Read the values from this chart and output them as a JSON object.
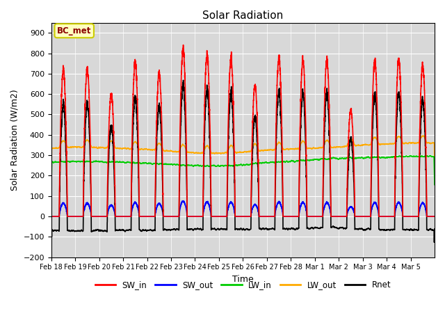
{
  "title": "Solar Radiation",
  "xlabel": "Time",
  "ylabel": "Solar Radiation (W/m2)",
  "ylim": [
    -200,
    950
  ],
  "yticks": [
    -200,
    -100,
    0,
    100,
    200,
    300,
    400,
    500,
    600,
    700,
    800,
    900
  ],
  "annotation": "BC_met",
  "annotation_color": "#8B0000",
  "annotation_bg": "#ffffc0",
  "annotation_edge": "#cccc00",
  "lines": {
    "SW_in": {
      "color": "#ff0000",
      "lw": 1.2
    },
    "SW_out": {
      "color": "#0000ff",
      "lw": 1.2
    },
    "LW_in": {
      "color": "#00cc00",
      "lw": 1.2
    },
    "LW_out": {
      "color": "#ffaa00",
      "lw": 1.2
    },
    "Rnet": {
      "color": "#000000",
      "lw": 1.2
    }
  },
  "bg_color": "#d8d8d8",
  "n_days": 16,
  "pts_per_day": 288,
  "day_labels": [
    "Feb 18",
    "Feb 19",
    "Feb 20",
    "Feb 21",
    "Feb 22",
    "Feb 23",
    "Feb 24",
    "Feb 25",
    "Feb 26",
    "Feb 27",
    "Feb 28",
    "Mar 1",
    "Mar 2",
    "Mar 3",
    "Mar 4",
    "Mar 5"
  ],
  "sw_in_peaks": [
    715,
    720,
    600,
    755,
    700,
    820,
    790,
    770,
    640,
    780,
    765,
    760,
    520,
    760,
    770,
    740
  ],
  "sw_out_peaks": [
    65,
    65,
    55,
    68,
    63,
    74,
    71,
    69,
    58,
    70,
    69,
    68,
    47,
    68,
    69,
    66
  ],
  "lw_in_base": [
    265,
    270,
    268,
    265,
    260,
    255,
    248,
    248,
    252,
    265,
    270,
    278,
    285,
    288,
    290,
    295
  ],
  "lw_out_base": [
    335,
    340,
    338,
    333,
    328,
    320,
    312,
    310,
    315,
    325,
    330,
    335,
    340,
    350,
    355,
    360
  ]
}
